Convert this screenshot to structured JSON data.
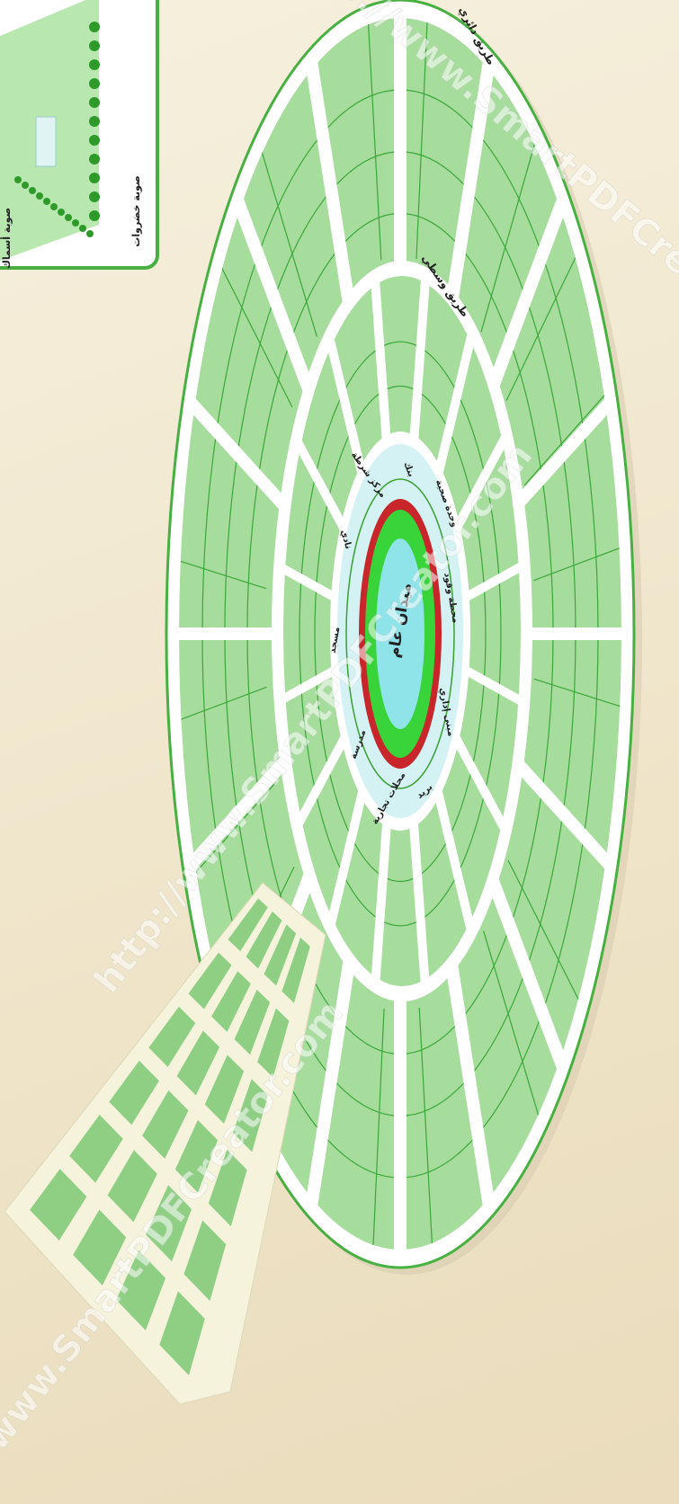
{
  "inset": {
    "labels": [
      "صوبة خضروات",
      "صوبة أسماك"
    ]
  },
  "roads": {
    "ring": "طريق دائري",
    "middle": "طريق وسطي"
  },
  "center": "ميدان عام",
  "facilities": [
    "بنك",
    "مركز شرطة",
    "نادي",
    "مسجد",
    "مدرسة",
    "محلات تجارية",
    "بريد",
    "مبنى إداري",
    "محطة وقود",
    "وحدة صحية"
  ],
  "watermarks": [
    "http://www.SmartPDFCreator.com",
    "http://www.SmartPDFCreator.com",
    "http://www.SmartPDFCreator.com"
  ]
}
